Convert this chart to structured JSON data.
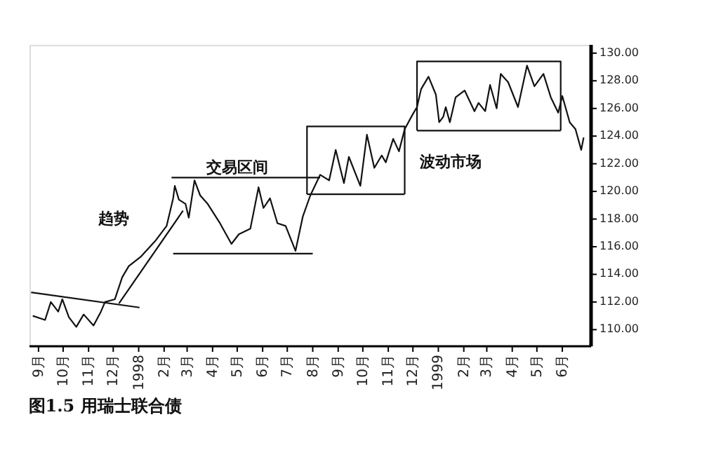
{
  "chart_data": {
    "type": "line",
    "title": "图1.5 用瑞士联合债",
    "xlim": [
      "1997-08-21",
      "1999-07-06"
    ],
    "xticks": [
      {
        "value": "1997-09-01",
        "label": "9月"
      },
      {
        "value": "1997-10-01",
        "label": "10月"
      },
      {
        "value": "1997-11-01",
        "label": "11月"
      },
      {
        "value": "1997-12-01",
        "label": "12月"
      },
      {
        "value": "1998-01-01",
        "label": "1998"
      },
      {
        "value": "1998-02-01",
        "label": "2月"
      },
      {
        "value": "1998-03-01",
        "label": "3月"
      },
      {
        "value": "1998-04-01",
        "label": "4月"
      },
      {
        "value": "1998-05-01",
        "label": "5月"
      },
      {
        "value": "1998-06-01",
        "label": "6月"
      },
      {
        "value": "1998-07-01",
        "label": "7月"
      },
      {
        "value": "1998-08-01",
        "label": "8月"
      },
      {
        "value": "1998-09-01",
        "label": "9月"
      },
      {
        "value": "1998-10-01",
        "label": "10月"
      },
      {
        "value": "1998-11-01",
        "label": "11月"
      },
      {
        "value": "1998-12-01",
        "label": "12月"
      },
      {
        "value": "1999-01-01",
        "label": "1999"
      },
      {
        "value": "1999-02-01",
        "label": "2月"
      },
      {
        "value": "1999-03-01",
        "label": "3月"
      },
      {
        "value": "1999-04-01",
        "label": "4月"
      },
      {
        "value": "1999-05-01",
        "label": "5月"
      },
      {
        "value": "1999-06-01",
        "label": "6月"
      }
    ],
    "ylim": [
      108.8,
      130.6
    ],
    "yticks": [
      {
        "value": 110,
        "label": "110.00"
      },
      {
        "value": 112,
        "label": "112.00"
      },
      {
        "value": 114,
        "label": "114.00"
      },
      {
        "value": 116,
        "label": "116.00"
      },
      {
        "value": 118,
        "label": "118.00"
      },
      {
        "value": 120,
        "label": "120.00"
      },
      {
        "value": 122,
        "label": "122.00"
      },
      {
        "value": 124,
        "label": "124.00"
      },
      {
        "value": 126,
        "label": "126.00"
      },
      {
        "value": 128,
        "label": "128.00"
      },
      {
        "value": 130,
        "label": "130.00"
      }
    ],
    "series": [
      {
        "color": "#111111",
        "x": [
          "1997-08-25",
          "1997-09-09",
          "1997-09-16",
          "1997-09-25",
          "1997-09-30",
          "1997-10-08",
          "1997-10-17",
          "1997-10-26",
          "1997-11-07",
          "1997-11-16",
          "1997-11-21",
          "1997-12-03",
          "1997-12-12",
          "1997-12-20",
          "1998-01-04",
          "1998-01-21",
          "1998-02-04",
          "1998-02-12",
          "1998-02-14",
          "1998-02-19",
          "1998-02-27",
          "1998-03-03",
          "1998-03-10",
          "1998-03-17",
          "1998-03-26",
          "1998-04-10",
          "1998-04-24",
          "1998-05-03",
          "1998-05-17",
          "1998-05-27",
          "1998-06-02",
          "1998-06-10",
          "1998-06-19",
          "1998-06-29",
          "1998-07-11",
          "1998-07-20",
          "1998-07-29",
          "1998-08-10",
          "1998-08-21",
          "1998-08-29",
          "1998-09-08",
          "1998-09-14",
          "1998-09-28",
          "1998-10-06",
          "1998-10-15",
          "1998-10-24",
          "1998-10-29",
          "1998-11-07",
          "1998-11-14",
          "1998-11-21",
          "1998-12-01",
          "1998-12-06",
          "1998-12-11",
          "1998-12-20",
          "1998-12-29",
          "1999-01-02",
          "1999-01-07",
          "1999-01-10",
          "1999-01-15",
          "1999-01-22",
          "1999-02-02",
          "1999-02-14",
          "1999-02-19",
          "1999-02-27",
          "1999-03-05",
          "1999-03-13",
          "1999-03-18",
          "1999-03-27",
          "1999-04-08",
          "1999-04-19",
          "1999-04-28",
          "1999-05-09",
          "1999-05-18",
          "1999-05-27",
          "1999-06-01",
          "1999-06-10",
          "1999-06-17",
          "1999-06-24",
          "1999-06-27"
        ],
        "values": [
          111.0,
          110.7,
          112.0,
          111.3,
          112.2,
          110.9,
          110.2,
          111.1,
          110.3,
          111.3,
          112.0,
          112.2,
          113.8,
          114.6,
          115.3,
          116.4,
          117.5,
          119.5,
          120.4,
          119.4,
          119.1,
          118.1,
          120.8,
          119.7,
          119.1,
          117.7,
          116.2,
          116.9,
          117.3,
          120.3,
          118.8,
          119.5,
          117.7,
          117.5,
          115.7,
          118.2,
          119.7,
          121.2,
          120.8,
          123.0,
          120.6,
          122.5,
          120.4,
          124.1,
          121.7,
          122.6,
          122.1,
          123.8,
          122.9,
          124.5,
          125.6,
          126.1,
          127.4,
          128.3,
          127.0,
          125.0,
          125.4,
          126.1,
          125.0,
          126.8,
          127.3,
          125.8,
          126.4,
          125.8,
          127.7,
          126.0,
          128.5,
          127.9,
          126.1,
          129.1,
          127.6,
          128.5,
          126.8,
          125.7,
          126.9,
          125.0,
          124.5,
          123.0,
          123.9
        ]
      },
      {
        "color": "#111111",
        "x": [
          "1997-08-23",
          "1998-01-02"
        ],
        "values": [
          112.7,
          111.6
        ]
      },
      {
        "color": "#111111",
        "x": [
          "1997-12-08",
          "1998-02-24"
        ],
        "values": [
          111.9,
          118.6
        ]
      },
      {
        "color": "#111111",
        "x": [
          "1998-02-10",
          "1998-08-10"
        ],
        "values": [
          121.0,
          121.0
        ]
      },
      {
        "color": "#111111",
        "x": [
          "1998-02-12",
          "1998-08-01"
        ],
        "values": [
          115.5,
          115.5
        ]
      },
      {
        "color": "#111111",
        "x": [
          "1998-07-25",
          "1998-07-25",
          "1998-11-21",
          "1998-11-21"
        ],
        "values": [
          119.8,
          124.7,
          124.7,
          119.8
        ]
      },
      {
        "color": "#111111",
        "x": [
          "1998-07-25",
          "1998-11-21"
        ],
        "values": [
          119.8,
          119.8
        ]
      },
      {
        "color": "#111111",
        "x": [
          "1998-12-06",
          "1998-12-06",
          "1999-05-30",
          "1999-05-30"
        ],
        "values": [
          124.4,
          129.4,
          129.4,
          124.4
        ]
      },
      {
        "color": "#111111",
        "x": [
          "1998-12-06",
          "1999-05-30"
        ],
        "values": [
          124.4,
          124.4
        ]
      }
    ],
    "annotations": [
      "趋势",
      "交易区间",
      "波动市场"
    ]
  }
}
